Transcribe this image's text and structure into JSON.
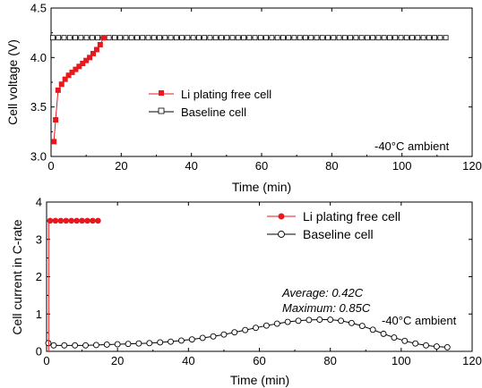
{
  "chart_data": [
    {
      "type": "line",
      "xlabel": "Time (min)",
      "ylabel": "Cell voltage (V)",
      "xlim": [
        0,
        120
      ],
      "ylim": [
        3.0,
        4.5
      ],
      "xticks": [
        "0",
        "20",
        "40",
        "60",
        "80",
        "100",
        "120"
      ],
      "yticks": [
        "3.0",
        "3.5",
        "4.0",
        "4.5"
      ],
      "annotation": "-40°C ambient",
      "legend_position": "center-left",
      "series": [
        {
          "name": "Li plating free cell",
          "color": "#e8191e",
          "marker": "filled-square",
          "x": [
            0.8,
            1.3,
            2.0,
            3.0,
            4.0,
            5.0,
            6.0,
            7.0,
            8.0,
            9.0,
            10.0,
            11.0,
            12.0,
            13.0,
            14.0,
            15.0
          ],
          "y": [
            3.15,
            3.37,
            3.67,
            3.73,
            3.78,
            3.82,
            3.85,
            3.88,
            3.91,
            3.94,
            3.97,
            4.0,
            4.04,
            4.08,
            4.13,
            4.2
          ]
        },
        {
          "name": "Baseline cell",
          "color": "#000000",
          "marker": "open-square",
          "x_start": 0.5,
          "x_end": 114,
          "x_step": 1.6,
          "y_const": 4.2
        }
      ]
    },
    {
      "type": "line",
      "xlabel": "Time (min)",
      "ylabel": "Cell current in C-rate",
      "xlim": [
        0,
        120
      ],
      "ylim": [
        0,
        4
      ],
      "xticks": [
        "0",
        "20",
        "40",
        "60",
        "80",
        "100",
        "120"
      ],
      "yticks": [
        "0",
        "1",
        "2",
        "3",
        "4"
      ],
      "annotation": "-40°C ambient",
      "stats": [
        "Average: 0.42C",
        "Maximum: 0.85C"
      ],
      "legend_position": "top-right",
      "series": [
        {
          "name": "Li plating free cell",
          "color": "#e8191e",
          "marker": "filled-circle",
          "x": [
            1.0,
            2.5,
            4.0,
            5.5,
            7.0,
            8.5,
            10.0,
            11.5,
            13.0,
            14.5
          ],
          "y": [
            3.5,
            3.5,
            3.5,
            3.5,
            3.5,
            3.5,
            3.5,
            3.5,
            3.5,
            3.5
          ]
        },
        {
          "name": "Baseline cell",
          "color": "#000000",
          "marker": "open-circle",
          "x": [
            0.5,
            2,
            5,
            8,
            11,
            14,
            17,
            20,
            23,
            26,
            29,
            32,
            35,
            38,
            41,
            44,
            47,
            50,
            53,
            56,
            59,
            62,
            65,
            68,
            71,
            74,
            77,
            80,
            83,
            86,
            89,
            92,
            95,
            98,
            101,
            104,
            107,
            110,
            113
          ],
          "y": [
            0.22,
            0.16,
            0.16,
            0.16,
            0.16,
            0.17,
            0.18,
            0.19,
            0.2,
            0.21,
            0.22,
            0.24,
            0.26,
            0.29,
            0.32,
            0.36,
            0.4,
            0.45,
            0.51,
            0.57,
            0.63,
            0.69,
            0.74,
            0.79,
            0.82,
            0.84,
            0.85,
            0.85,
            0.82,
            0.76,
            0.68,
            0.58,
            0.47,
            0.37,
            0.28,
            0.21,
            0.16,
            0.13,
            0.11
          ]
        }
      ]
    }
  ]
}
